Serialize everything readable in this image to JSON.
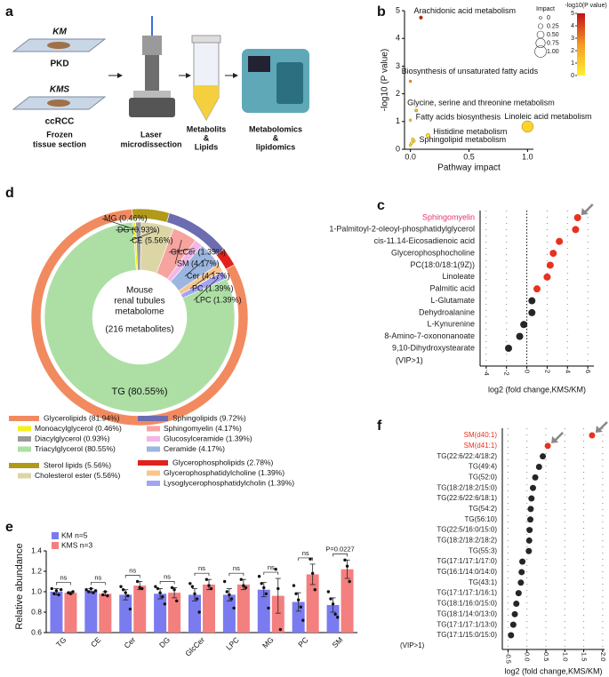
{
  "diagram": {
    "panel": "a",
    "slides": [
      {
        "name": "KM",
        "sub": "PKD"
      },
      {
        "name": "KMS",
        "sub": "ccRCC"
      }
    ],
    "steps": [
      [
        "Frozen",
        "tissue section"
      ],
      [
        "Laser",
        "microdissection"
      ],
      [
        "Metabolits",
        "&",
        "Lipids"
      ],
      [
        "Metabolomics",
        "&",
        "lipidomics"
      ]
    ]
  },
  "chart_data": [
    {
      "panel": "b",
      "type": "bubble",
      "xlabel": "Pathway impact",
      "ylabel": "-log10 (P value)",
      "xlim": [
        -0.05,
        1.05
      ],
      "xticks": [
        {
          "value": 0,
          "label": "0.0"
        },
        0.5,
        {
          "value": 1,
          "label": "1.0"
        }
      ],
      "ylim": [
        0,
        5
      ],
      "yticks": [
        0,
        1,
        2,
        3,
        4,
        5
      ],
      "labels": [
        "Arachidonic acid metabolism",
        "Biosynthesis of unsaturated fatty acids",
        "Glycine, serine and threonine metabolism",
        "Fatty acids biosynthesis",
        "Linoleic acid metabolism",
        "Histidine metabolism",
        "Sphingolipid metabolism",
        null,
        null,
        null
      ],
      "x": [
        0.09,
        0.0,
        0.05,
        0.0,
        1.0,
        0.15,
        0.03,
        0.01,
        0.02,
        0.0
      ],
      "y": [
        4.75,
        2.45,
        1.4,
        1.05,
        0.82,
        0.5,
        0.3,
        0.22,
        0.36,
        0.15
      ],
      "size_legend": {
        "title": "Impact",
        "ticks": [
          0,
          0.25,
          {
            "value": 0.5,
            "label": "0.50"
          },
          0.75,
          {
            "value": 1,
            "label": "1.00"
          }
        ]
      },
      "color_legend": {
        "title": "-log10(P value)",
        "lim": [
          0,
          5
        ],
        "ticks": [
          0,
          1,
          2,
          3,
          4,
          5
        ],
        "colors": [
          "#ffef30",
          "#f59a23",
          "#c0101a"
        ]
      }
    },
    {
      "panel": "c",
      "type": "dot",
      "categories": [
        "Sphingomyelin",
        "1-Palmitoyl-2-oleoyl-phosphatidylglycerol",
        "cis-11.14-Eicosadienoic acid",
        "Glycerophosphocholine",
        "PC(18:0/18:1(9Z))",
        "Linoleate",
        "Palmitic acid",
        "L-Glutamate",
        "Dehydroalanine",
        "L-Kynurenine",
        "8-Amino-7-oxononanoate",
        "9,10-Dihydroxystearate"
      ],
      "values": [
        5.0,
        4.8,
        3.2,
        2.6,
        2.3,
        2.0,
        1.0,
        0.5,
        0.5,
        -0.3,
        -0.7,
        -1.8
      ],
      "colors": [
        "#e8311f",
        "#e8311f",
        "#e8311f",
        "#e8311f",
        "#e8311f",
        "#e8311f",
        "#e8311f",
        "#262626",
        "#262626",
        "#262626",
        "#262626",
        "#262626"
      ],
      "category_colors": [
        "#e8336b",
        "#222222",
        "#222222",
        "#222222",
        "#222222",
        "#222222",
        "#222222",
        "#222222",
        "#222222",
        "#222222",
        "#222222",
        "#222222"
      ],
      "annotation": "(VIP>1)",
      "xlabel": "log2 (fold change,KMS/KM)",
      "xlim": [
        -4.6,
        6.6
      ],
      "xticks": [
        -4,
        -2,
        0,
        2,
        4,
        6
      ],
      "grid": true,
      "refline": 0,
      "arrows": [
        0
      ]
    },
    {
      "panel": "d",
      "type": "donut",
      "center_text": [
        "Mouse",
        "renal tubules",
        "metabolome",
        "(216 metabolites)"
      ],
      "outer": {
        "legend_labels": [
          "Sterol lipids (5.56%)",
          "Sphingolipids (9.72%)",
          "Glycerophospholipids (2.78%)",
          "Glycerolipids (81.94%)"
        ],
        "values": [
          5.56,
          9.72,
          2.78,
          81.94
        ],
        "colors": [
          "#b1991a",
          "#6c6cb0",
          "#e3211c",
          "#f28a60"
        ]
      },
      "inner": {
        "labels": [
          "MG (0.46%)",
          "DG (0.93%)",
          "CE (5.56%)",
          "SM (4.17%)",
          "GlcCer (1.39%)",
          "Cer (4.17%)",
          "PC (1.39%)",
          "LPC (1.39%)",
          "TG (80.55%)"
        ],
        "legend_labels": [
          "Monoacylglycerol (0.46%)",
          "Diacylglycerol (0.93%)",
          "Cholesterol ester (5.56%)",
          "Sphingomyelin (4.17%)",
          "Glucosylceramide (1.39%)",
          "Ceramide (4.17%)",
          "Glycerophosphatidylcholine (1.39%)",
          "Lysoglycerophosphatidylcholin (1.39%)",
          "Triacylglycerol (80.55%)"
        ],
        "values": [
          0.46,
          0.93,
          5.56,
          4.17,
          1.39,
          4.17,
          1.39,
          1.39,
          80.55
        ],
        "colors": [
          "#f6ef1e",
          "#9a9a9a",
          "#dcd6a6",
          "#f7a3a0",
          "#f3b6e6",
          "#9cb6e0",
          "#f9c58a",
          "#a3a3f5",
          "#addfa5"
        ]
      }
    },
    {
      "panel": "e",
      "type": "bar",
      "ylabel": "Relative abundance",
      "categories": [
        "TG",
        "CE",
        "Cer",
        "DG",
        "GlcCer",
        "LPC",
        "MG",
        "PC",
        "SM"
      ],
      "ylim": [
        0.6,
        1.4
      ],
      "yticks": [
        0.6,
        0.8,
        {
          "value": 1,
          "label": "1.0"
        },
        1.2,
        1.4
      ],
      "series": [
        {
          "name": "KM n=5",
          "color": "#7b7bf0",
          "values": [
            1.0,
            1.01,
            0.97,
            0.98,
            0.97,
            0.97,
            1.02,
            0.9,
            0.87
          ],
          "errors": [
            0.03,
            0.02,
            0.05,
            0.05,
            0.06,
            0.06,
            0.07,
            0.09,
            0.07
          ],
          "points": [
            [
              1.03,
              0.98,
              1.01,
              0.97,
              1.02
            ],
            [
              1.02,
              1.0,
              1.03,
              0.99,
              1.01
            ],
            [
              1.05,
              1.02,
              0.99,
              0.96,
              0.83
            ],
            [
              1.05,
              1.03,
              0.99,
              0.95,
              0.88
            ],
            [
              1.08,
              1.05,
              0.98,
              0.93,
              0.8
            ],
            [
              1.1,
              1.0,
              0.97,
              0.93,
              0.84
            ],
            [
              1.15,
              1.08,
              1.04,
              0.98,
              0.84
            ],
            [
              1.06,
              0.98,
              0.92,
              0.85,
              0.72
            ],
            [
              1.0,
              0.93,
              0.88,
              0.78,
              0.75
            ]
          ]
        },
        {
          "name": "KMS n=3",
          "color": "#f47f7f",
          "values": [
            0.99,
            0.98,
            1.06,
            0.99,
            1.07,
            1.07,
            0.96,
            1.17,
            1.22
          ],
          "errors": [
            0.01,
            0.02,
            0.04,
            0.05,
            0.05,
            0.05,
            0.17,
            0.1,
            0.09
          ],
          "points": [
            [
              0.99,
              0.98,
              1.0
            ],
            [
              0.97,
              1.0,
              0.96
            ],
            [
              1.1,
              1.04,
              1.03
            ],
            [
              1.04,
              1.02,
              0.91
            ],
            [
              1.12,
              1.06,
              1.03
            ],
            [
              1.12,
              1.06,
              1.04
            ],
            [
              1.22,
              1.03,
              0.63
            ],
            [
              1.32,
              1.18,
              1.02
            ],
            [
              1.31,
              1.25,
              1.1
            ]
          ]
        }
      ],
      "annotations": [
        "ns",
        "ns",
        "ns",
        "ns",
        "ns",
        "ns",
        "ns",
        "ns",
        "P=0.0227"
      ]
    },
    {
      "panel": "f",
      "type": "dot",
      "categories": [
        "SM(d40:1)",
        "SM(d41:1)",
        "TG(22:6/22:4/18:2)",
        "TG(49:4)",
        "TG(52:0)",
        "TG(18:2/18:2/15:0)",
        "TG(22:6/22:6/18:1)",
        "TG(54:2)",
        "TG(56:10)",
        "TG(22:5/16:0/15:0)",
        "TG(18:2/18:2/18:2)",
        "TG(55:3)",
        "TG(17:1/17:1/17:0)",
        "TG(16:1/14:0/14:0)",
        "TG(43:1)",
        "TG(17:1/17:1/16:1)",
        "TG(18:1/16:0/15:0)",
        "TG(18:1/14:0/13:0)",
        "TG(17:1/17:1/13:0)",
        "TG(17:1/15:0/15:0)"
      ],
      "values": [
        1.72,
        0.55,
        0.42,
        0.32,
        0.22,
        0.16,
        0.12,
        0.1,
        0.09,
        0.07,
        0.06,
        0.05,
        -0.12,
        -0.14,
        -0.16,
        -0.22,
        -0.28,
        -0.32,
        -0.36,
        -0.42
      ],
      "colors": [
        "#e8311f",
        "#e8311f",
        "#262626",
        "#262626",
        "#262626",
        "#262626",
        "#262626",
        "#262626",
        "#262626",
        "#262626",
        "#262626",
        "#262626",
        "#262626",
        "#262626",
        "#262626",
        "#262626",
        "#262626",
        "#262626",
        "#262626",
        "#262626"
      ],
      "category_colors": [
        "#e8311f",
        "#e8311f",
        "#222222",
        "#222222",
        "#222222",
        "#222222",
        "#222222",
        "#222222",
        "#222222",
        "#222222",
        "#222222",
        "#222222",
        "#222222",
        "#222222",
        "#222222",
        "#222222",
        "#222222",
        "#222222",
        "#222222",
        "#222222"
      ],
      "annotation": "(VIP>1)",
      "xlabel": "log2 (fold change,KMS/KM)",
      "xlim": [
        -0.65,
        2.05
      ],
      "xticks": [
        -0.5,
        {
          "value": 0,
          "label": "0.0"
        },
        0.5,
        {
          "value": 1,
          "label": "1.0"
        },
        1.5,
        {
          "value": 2,
          "label": "2.0"
        }
      ],
      "grid": true,
      "arrows": [
        0,
        1
      ]
    }
  ]
}
